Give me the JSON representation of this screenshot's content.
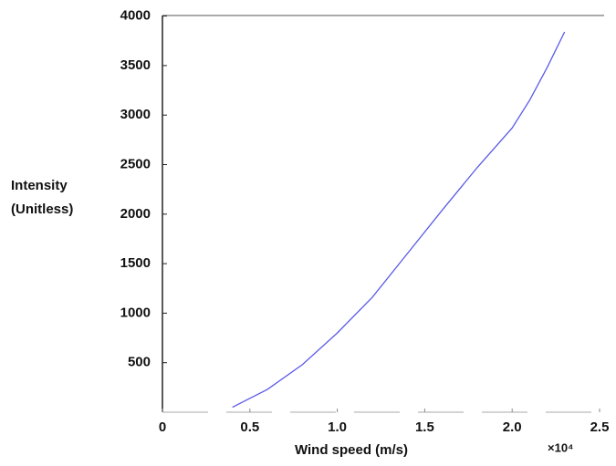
{
  "chart_data": {
    "type": "line",
    "x_label": "Wind speed (m/s)",
    "y_label": [
      "Intensity",
      "(Unitless)"
    ],
    "x_multiplier": "×10⁴",
    "x": [
      0.4,
      0.6,
      0.8,
      1.0,
      1.2,
      1.4,
      1.6,
      1.8,
      2.0,
      2.1,
      2.2,
      2.3
    ],
    "series": [
      {
        "name": "Intensity",
        "color": "#5a5ae6",
        "values": [
          50,
          230,
          480,
          800,
          1160,
          1600,
          2040,
          2470,
          2870,
          3150,
          3480,
          3840
        ]
      }
    ],
    "xlim": [
      0,
      2.5
    ],
    "xticks": [
      0,
      0.5,
      {
        "value": 1.0,
        "label": "1.0"
      },
      1.5,
      {
        "value": 2.0,
        "label": "2.0"
      },
      2.5
    ],
    "ylim": [
      0,
      4000
    ],
    "yticks": [
      500,
      1000,
      1500,
      2000,
      2500,
      3000,
      3500,
      4000
    ]
  }
}
